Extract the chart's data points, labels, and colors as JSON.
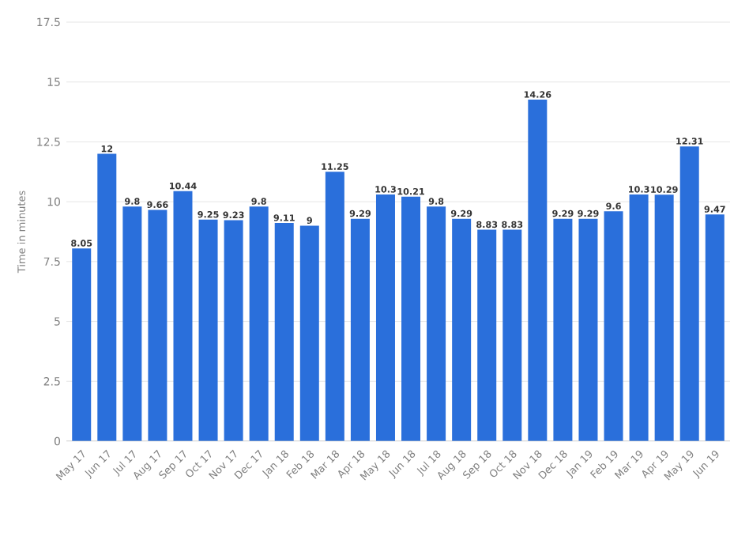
{
  "chart_data": {
    "type": "bar",
    "ylabel": "Time in minutes",
    "categories": [
      "May 17",
      "Jun 17",
      "Jul 17",
      "Aug 17",
      "Sep 17",
      "Oct 17",
      "Nov 17",
      "Dec 17",
      "Jan 18",
      "Feb 18",
      "Mar 18",
      "Apr 18",
      "May 18",
      "Jun 18",
      "Jul 18",
      "Aug 18",
      "Sep 18",
      "Oct 18",
      "Nov 18",
      "Dec 18",
      "Jan 19",
      "Feb 19",
      "Mar 19",
      "Apr 19",
      "May 19",
      "Jun 19"
    ],
    "values": [
      8.05,
      12,
      9.8,
      9.66,
      10.44,
      9.25,
      9.23,
      9.8,
      9.11,
      9,
      11.25,
      9.29,
      10.3,
      10.21,
      9.8,
      9.29,
      8.83,
      8.83,
      14.26,
      9.29,
      9.29,
      9.6,
      10.3,
      10.29,
      12.31,
      9.47
    ],
    "color": "#2a6fdb",
    "ylim": [
      0,
      17.5
    ],
    "yticks": [
      0,
      2.5,
      5,
      7.5,
      10,
      12.5,
      15,
      17.5
    ],
    "grid": "y",
    "data_labels": true
  }
}
